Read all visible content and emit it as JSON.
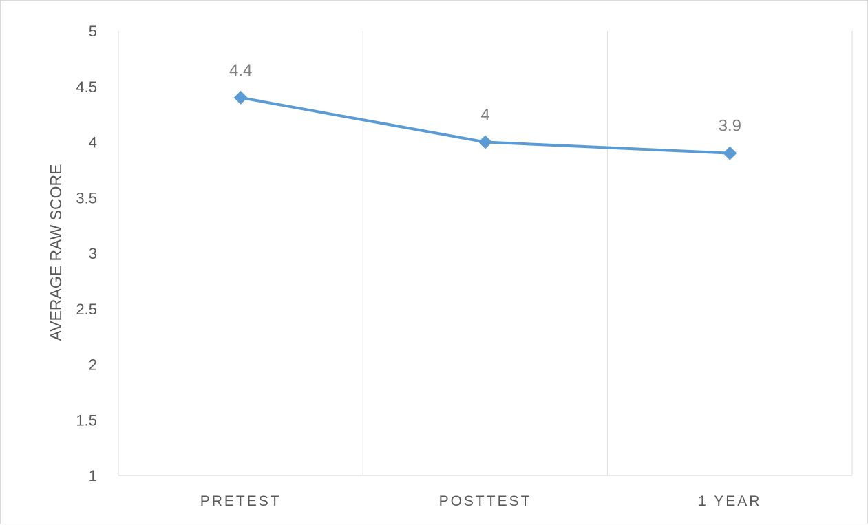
{
  "chart_data": {
    "type": "line",
    "title": "",
    "xlabel": "",
    "ylabel": "AVERAGE RAW SCORE",
    "categories": [
      "PRETEST",
      "POSTTEST",
      "1 YEAR"
    ],
    "series": [
      {
        "values": [
          4.4,
          4,
          3.9
        ],
        "data_labels": [
          "4.4",
          "4",
          "3.9"
        ],
        "color": "#5b9bd5",
        "marker": "diamond"
      }
    ],
    "ylim": [
      1,
      5
    ],
    "yticks": [
      "1",
      "1.5",
      "2",
      "2.5",
      "3",
      "3.5",
      "4",
      "4.5",
      "5"
    ],
    "grid": "vertical-category-dividers",
    "legend": "none",
    "colors": {
      "line": "#5b9bd5",
      "grid": "#d9d9d9",
      "text": "#595959",
      "data_label": "#7f7f7f"
    }
  }
}
